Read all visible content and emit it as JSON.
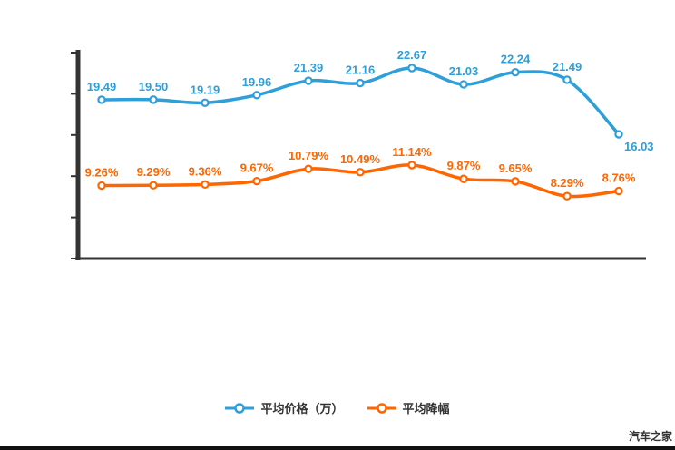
{
  "watermark": "汽车之家",
  "legend": {
    "items": [
      {
        "label": "平均价格（万）",
        "color": "#2E9FD8"
      },
      {
        "label": "平均降幅",
        "color": "#FF6600"
      }
    ]
  },
  "chart_data": {
    "type": "line",
    "title": "",
    "xlabel": "",
    "ylabel": "",
    "x_axis": {
      "labels_visible": false,
      "points": 11
    },
    "y_axis": {
      "labels_visible": false,
      "tick_count": 6
    },
    "grid": false,
    "legend_position": "bottom-center",
    "axis_color": "#333333",
    "series": [
      {
        "name": "平均价格（万）",
        "color": "#2E9FD8",
        "values": [
          19.49,
          19.5,
          19.19,
          19.96,
          21.39,
          21.16,
          22.67,
          21.03,
          22.24,
          21.49,
          16.03
        ],
        "labels": [
          "19.49",
          "19.50",
          "19.19",
          "19.96",
          "21.39",
          "21.16",
          "22.67",
          "21.03",
          "22.24",
          "21.49",
          "16.03"
        ]
      },
      {
        "name": "平均降幅",
        "color": "#FF6600",
        "values": [
          9.26,
          9.29,
          9.36,
          9.67,
          10.79,
          10.49,
          11.14,
          9.87,
          9.65,
          8.29,
          8.76
        ],
        "labels": [
          "9.26%",
          "9.29%",
          "9.36%",
          "9.67%",
          "10.79%",
          "10.49%",
          "11.14%",
          "9.87%",
          "9.65%",
          "8.29%",
          "8.76%"
        ]
      }
    ]
  }
}
